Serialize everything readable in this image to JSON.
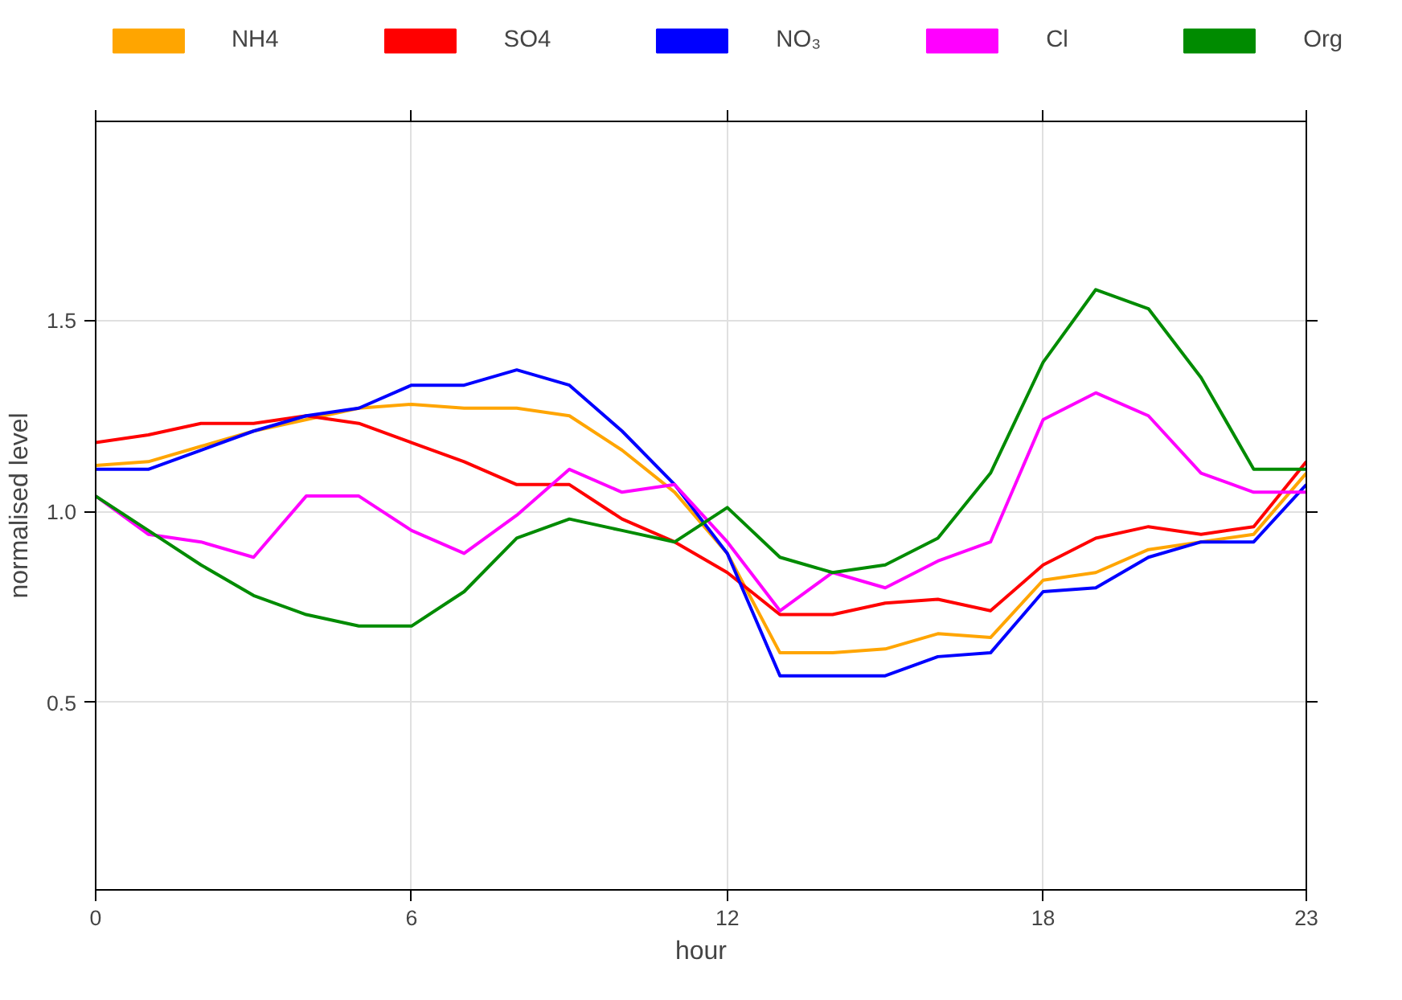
{
  "chart_data": {
    "type": "line",
    "xlabel": "hour",
    "ylabel": "normalised level",
    "x": [
      0,
      1,
      2,
      3,
      4,
      5,
      6,
      7,
      8,
      9,
      10,
      11,
      12,
      13,
      14,
      15,
      16,
      17,
      18,
      19,
      20,
      21,
      22,
      23
    ],
    "xlim": [
      0,
      23
    ],
    "xticks": [
      0,
      6,
      12,
      18,
      23
    ],
    "ylim": [
      0.01,
      2.02
    ],
    "yticks": [
      {
        "value": 0.5,
        "label": "0.5"
      },
      {
        "value": 1,
        "label": "1.0"
      },
      {
        "value": 1.5,
        "label": "1.5"
      }
    ],
    "grid": true,
    "legend": "top",
    "tick_labels": "xy",
    "line_style": "solid",
    "marker": "none",
    "series": [
      {
        "name": "NH4",
        "color": "#ffa500",
        "values": [
          1.12,
          1.13,
          1.17,
          1.21,
          1.24,
          1.27,
          1.28,
          1.27,
          1.27,
          1.25,
          1.16,
          1.05,
          0.89,
          0.63,
          0.63,
          0.64,
          0.68,
          0.67,
          0.82,
          0.84,
          0.9,
          0.92,
          0.94,
          1.1
        ]
      },
      {
        "name": "SO4",
        "color": "#ff0000",
        "values": [
          1.18,
          1.2,
          1.23,
          1.23,
          1.25,
          1.23,
          1.18,
          1.13,
          1.07,
          1.07,
          0.98,
          0.92,
          0.84,
          0.73,
          0.73,
          0.76,
          0.77,
          0.74,
          0.86,
          0.93,
          0.96,
          0.94,
          0.96,
          1.13
        ]
      },
      {
        "name": "NO₃",
        "color": "#0000ff",
        "values": [
          1.11,
          1.11,
          1.16,
          1.21,
          1.25,
          1.27,
          1.33,
          1.33,
          1.37,
          1.33,
          1.21,
          1.07,
          0.89,
          0.57,
          0.57,
          0.57,
          0.62,
          0.63,
          0.79,
          0.8,
          0.88,
          0.92,
          0.92,
          1.07
        ]
      },
      {
        "name": "Cl",
        "color": "#ff00ff",
        "values": [
          1.04,
          0.94,
          0.92,
          0.88,
          1.04,
          1.04,
          0.95,
          0.89,
          0.99,
          1.11,
          1.05,
          1.07,
          0.92,
          0.74,
          0.84,
          0.8,
          0.87,
          0.92,
          1.24,
          1.31,
          1.25,
          1.1,
          1.05,
          1.05
        ]
      },
      {
        "name": "Org",
        "color": "#008b00",
        "values": [
          1.04,
          0.95,
          0.86,
          0.78,
          0.73,
          0.7,
          0.7,
          0.79,
          0.93,
          0.98,
          0.95,
          0.92,
          1.01,
          0.88,
          0.84,
          0.86,
          0.93,
          1.1,
          1.39,
          1.58,
          1.53,
          1.35,
          1.11,
          1.11
        ]
      }
    ]
  }
}
